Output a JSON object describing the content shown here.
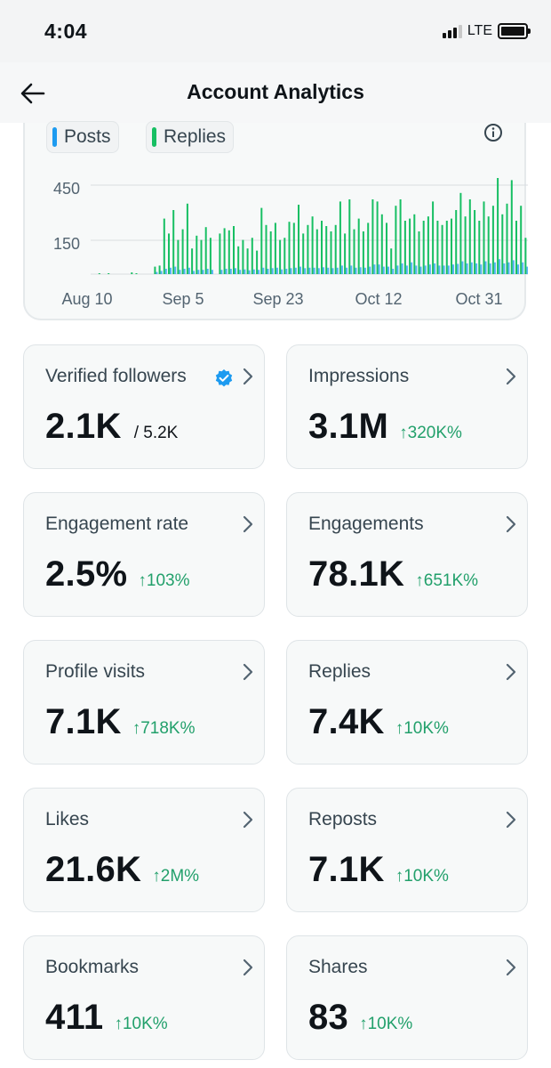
{
  "status_bar": {
    "time": "4:04",
    "network": "LTE"
  },
  "header": {
    "title": "Account Analytics"
  },
  "legend": [
    {
      "label": "Posts",
      "color": "#1d9bf0"
    },
    {
      "label": "Replies",
      "color": "#17bf63"
    }
  ],
  "chart_data": {
    "type": "bar",
    "x_ticks": [
      "Aug 10",
      "Sep 5",
      "Sep 23",
      "Oct 12",
      "Oct 31"
    ],
    "y_ticks": [
      "450",
      "150"
    ],
    "ylim": [
      0,
      500
    ],
    "grid": true,
    "series": [
      {
        "name": "Replies",
        "color": "#17bf63",
        "values": [
          0,
          2,
          0,
          3,
          0,
          0,
          0,
          0,
          8,
          2,
          0,
          0,
          0,
          35,
          40,
          260,
          190,
          300,
          160,
          210,
          330,
          120,
          180,
          160,
          220,
          170,
          0,
          190,
          215,
          205,
          225,
          130,
          160,
          120,
          170,
          110,
          310,
          230,
          200,
          240,
          160,
          170,
          245,
          240,
          325,
          190,
          230,
          270,
          210,
          250,
          225,
          200,
          230,
          340,
          190,
          350,
          210,
          260,
          200,
          240,
          350,
          340,
          280,
          240,
          120,
          320,
          350,
          250,
          260,
          280,
          200,
          250,
          270,
          340,
          250,
          230,
          250,
          260,
          300,
          380,
          270,
          350,
          300,
          250,
          340,
          270,
          320,
          450,
          280,
          330,
          440,
          250,
          320,
          170
        ]
      },
      {
        "name": "Posts",
        "color": "#1d9bf0",
        "values": [
          0,
          0,
          0,
          0,
          0,
          0,
          0,
          0,
          0,
          0,
          0,
          0,
          0,
          10,
          15,
          25,
          30,
          35,
          20,
          25,
          30,
          15,
          20,
          20,
          25,
          20,
          0,
          20,
          25,
          25,
          28,
          20,
          22,
          18,
          22,
          20,
          30,
          25,
          28,
          30,
          22,
          25,
          28,
          30,
          35,
          28,
          30,
          30,
          28,
          32,
          30,
          28,
          30,
          40,
          30,
          40,
          30,
          32,
          30,
          35,
          45,
          45,
          35,
          35,
          25,
          40,
          50,
          40,
          55,
          40,
          35,
          40,
          45,
          50,
          40,
          40,
          40,
          45,
          48,
          60,
          50,
          55,
          50,
          45,
          60,
          50,
          55,
          70,
          50,
          55,
          65,
          45,
          55,
          35
        ]
      }
    ]
  },
  "metrics": [
    {
      "label": "Verified followers",
      "value": "2.1K",
      "sub": "/ 5.2K",
      "verified": true
    },
    {
      "label": "Impressions",
      "value": "3.1M",
      "delta": "↑320K%"
    },
    {
      "label": "Engagement rate",
      "value": "2.5%",
      "delta": "↑103%"
    },
    {
      "label": "Engagements",
      "value": "78.1K",
      "delta": "↑651K%"
    },
    {
      "label": "Profile visits",
      "value": "7.1K",
      "delta": "↑718K%"
    },
    {
      "label": "Replies",
      "value": "7.4K",
      "delta": "↑10K%"
    },
    {
      "label": "Likes",
      "value": "21.6K",
      "delta": "↑2M%"
    },
    {
      "label": "Reposts",
      "value": "7.1K",
      "delta": "↑10K%"
    },
    {
      "label": "Bookmarks",
      "value": "411",
      "delta": "↑10K%"
    },
    {
      "label": "Shares",
      "value": "83",
      "delta": "↑10K%"
    }
  ]
}
